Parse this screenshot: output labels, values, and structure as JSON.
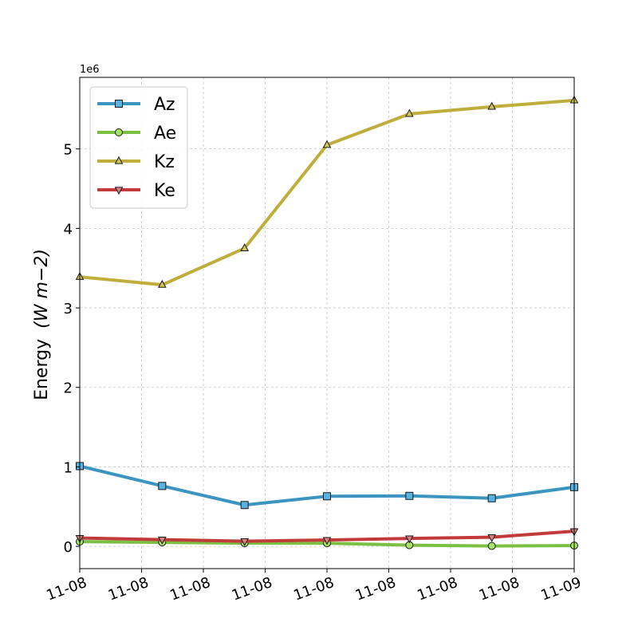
{
  "chart_data": {
    "type": "line",
    "ylabel": "Energy",
    "ylabel_units": "(W m−2)",
    "y_offset_label": "1e6",
    "ylim": [
      -0.28,
      5.9
    ],
    "yticks": [
      0,
      1,
      2,
      3,
      4,
      5
    ],
    "x": [
      0,
      1,
      2,
      3,
      4,
      5,
      6
    ],
    "xlim": [
      0,
      6
    ],
    "xticks": [
      0,
      0.75,
      1.5,
      2.25,
      3,
      3.75,
      4.5,
      5.25,
      6
    ],
    "xtick_labels": [
      "11-08",
      "11-08",
      "11-08",
      "11-08",
      "11-08",
      "11-08",
      "11-08",
      "11-08",
      "11-09"
    ],
    "grid": true,
    "legend_position": "top-left",
    "series": [
      {
        "name": "Az",
        "color": "#3b95c0",
        "marker": "square",
        "marker_fill": "#57b3df",
        "values": [
          1.01,
          0.76,
          0.52,
          0.63,
          0.635,
          0.605,
          0.745
        ]
      },
      {
        "name": "Ae",
        "color": "#7bbf43",
        "marker": "circle",
        "marker_fill": "#a6e463",
        "values": [
          0.06,
          0.05,
          0.04,
          0.04,
          0.015,
          0.005,
          0.01
        ]
      },
      {
        "name": "Kz",
        "color": "#bfae3c",
        "marker": "triangle-up",
        "marker_fill": "#d0c454",
        "values": [
          3.39,
          3.29,
          3.75,
          5.05,
          5.44,
          5.53,
          5.61
        ]
      },
      {
        "name": "Ke",
        "color": "#c23b3b",
        "marker": "triangle-down",
        "marker_fill": "#d98080",
        "values": [
          0.105,
          0.085,
          0.065,
          0.08,
          0.1,
          0.115,
          0.19
        ]
      }
    ]
  }
}
